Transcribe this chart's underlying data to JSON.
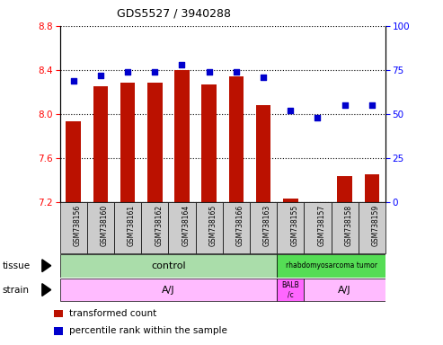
{
  "title": "GDS5527 / 3940288",
  "samples": [
    "GSM738156",
    "GSM738160",
    "GSM738161",
    "GSM738162",
    "GSM738164",
    "GSM738165",
    "GSM738166",
    "GSM738163",
    "GSM738155",
    "GSM738157",
    "GSM738158",
    "GSM738159"
  ],
  "transformed_count": [
    7.93,
    8.25,
    8.28,
    8.28,
    8.4,
    8.27,
    8.34,
    8.08,
    7.23,
    7.19,
    7.43,
    7.45
  ],
  "percentile_rank": [
    69,
    72,
    74,
    74,
    78,
    74,
    74,
    71,
    52,
    48,
    55,
    55
  ],
  "ylim_left": [
    7.2,
    8.8
  ],
  "ylim_right": [
    0,
    100
  ],
  "yticks_left": [
    7.2,
    7.6,
    8.0,
    8.4,
    8.8
  ],
  "yticks_right": [
    0,
    25,
    50,
    75,
    100
  ],
  "bar_color": "#bb1100",
  "dot_color": "#0000cc",
  "sample_box_color": "#cccccc",
  "control_color": "#aaddaa",
  "rhabdo_color": "#55dd55",
  "strain_aj_color": "#ffbbff",
  "strain_balb_color": "#ff66ff",
  "tissue_groups": [
    {
      "label": "control",
      "start": 0,
      "end": 8
    },
    {
      "label": "rhabdomyosarcoma tumor",
      "start": 8,
      "end": 12
    }
  ],
  "strain_groups": [
    {
      "label": "A/J",
      "start": 0,
      "end": 8
    },
    {
      "label": "BALB\n/c",
      "start": 8,
      "end": 9
    },
    {
      "label": "A/J",
      "start": 9,
      "end": 12
    }
  ],
  "legend_items": [
    {
      "color": "#bb1100",
      "label": "transformed count"
    },
    {
      "color": "#0000cc",
      "label": "percentile rank within the sample"
    }
  ]
}
